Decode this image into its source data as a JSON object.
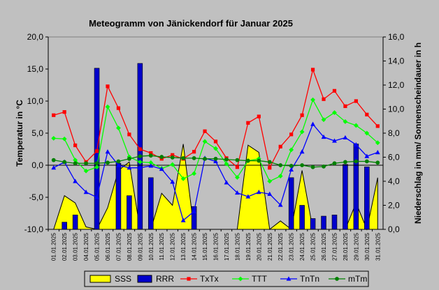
{
  "chart_data": {
    "type": "combo",
    "title": "Meteogramm von Jänickendorf für Januar 2025",
    "ylabel_left": "Temperatur in °C",
    "ylabel_right": "Niederschlag in mm/ Sonnenscheindauer in h",
    "ylim_left": [
      -10,
      20
    ],
    "ylim_right": [
      0,
      16
    ],
    "yticks_left": [
      "-10,0",
      "-5,0",
      "0,0",
      "5,0",
      "10,0",
      "15,0",
      "20,0"
    ],
    "yticks_right": [
      "0,0",
      "2,0",
      "4,0",
      "6,0",
      "8,0",
      "10,0",
      "12,0",
      "14,0",
      "16,0"
    ],
    "categories": [
      "01.01.2025",
      "02.01.2025",
      "03.01.2025",
      "04.01.2025",
      "05.01.2025",
      "06.01.2025",
      "07.01.2025",
      "08.01.2025",
      "09.01.2025",
      "10.01.2025",
      "11.01.2025",
      "12.01.2025",
      "13.01.2025",
      "14.01.2025",
      "15.01.2025",
      "16.01.2025",
      "17.01.2025",
      "18.01.2025",
      "19.01.2025",
      "20.01.2025",
      "21.01.2025",
      "22.01.2025",
      "23.01.2025",
      "24.01.2025",
      "25.01.2025",
      "26.01.2025",
      "27.01.2025",
      "28.01.2025",
      "29.01.2025",
      "30.01.2025",
      "31.01.2025"
    ],
    "grid": false,
    "legend_position": "bottom",
    "series": [
      {
        "name": "SSS",
        "type": "area",
        "axis": "right",
        "color": "#ffff00",
        "values": [
          0.0,
          2.8,
          2.2,
          0.2,
          0.0,
          1.8,
          4.9,
          5.6,
          0.0,
          0.0,
          3.0,
          2.0,
          7.1,
          0.0,
          0.0,
          0.0,
          0.0,
          0.0,
          7.0,
          6.4,
          0.0,
          0.7,
          0.0,
          4.9,
          0.0,
          0.0,
          0.0,
          0.0,
          2.2,
          0.0,
          4.3
        ]
      },
      {
        "name": "RRR",
        "type": "bar",
        "axis": "right",
        "color": "#0000cc",
        "values": [
          0.0,
          0.6,
          1.2,
          0.0,
          13.4,
          0.0,
          5.5,
          2.8,
          13.8,
          4.3,
          0.0,
          0.0,
          0.0,
          1.9,
          0.0,
          0.0,
          0.0,
          0.0,
          0.0,
          0.0,
          0.0,
          0.0,
          4.3,
          2.0,
          0.9,
          1.1,
          1.2,
          5.4,
          7.1,
          5.2,
          0.0
        ]
      },
      {
        "name": "TxTx",
        "type": "line",
        "axis": "left",
        "color": "#ff0000",
        "values": [
          7.8,
          8.3,
          3.1,
          0.5,
          2.2,
          12.3,
          8.9,
          4.8,
          2.5,
          1.9,
          1.0,
          1.6,
          1.0,
          2.1,
          5.3,
          3.7,
          1.1,
          -0.3,
          6.6,
          7.6,
          -0.4,
          2.9,
          4.8,
          7.8,
          14.9,
          10.3,
          11.6,
          9.2,
          10.0,
          7.9,
          6.1
        ]
      },
      {
        "name": "TTT",
        "type": "line",
        "axis": "left",
        "color": "#00ff00",
        "values": [
          4.2,
          4.1,
          0.8,
          -0.9,
          -0.3,
          9.1,
          5.8,
          1.3,
          0.5,
          0.4,
          -0.5,
          0.1,
          -2.1,
          -1.3,
          3.7,
          2.6,
          0.2,
          -1.9,
          0.7,
          1.0,
          -2.5,
          -1.7,
          2.4,
          5.2,
          10.2,
          7.1,
          8.2,
          6.8,
          6.2,
          5.0,
          3.5
        ]
      },
      {
        "name": "TnTn",
        "type": "line",
        "axis": "left",
        "color": "#0000ff",
        "values": [
          -0.4,
          0.5,
          -2.5,
          -4.2,
          -5.0,
          2.1,
          0.0,
          -0.4,
          -0.4,
          -0.1,
          -0.6,
          -2.6,
          -8.6,
          -7.2,
          1.1,
          0.6,
          -2.7,
          -4.3,
          -4.9,
          -4.2,
          -4.5,
          -6.2,
          -0.7,
          2.1,
          6.4,
          4.4,
          3.8,
          4.3,
          3.2,
          1.4,
          2.0
        ]
      },
      {
        "name": "mTm",
        "type": "line",
        "axis": "left",
        "color": "#008000",
        "values": [
          0.8,
          0.5,
          0.3,
          0.3,
          0.3,
          0.4,
          0.6,
          1.0,
          1.4,
          1.5,
          1.3,
          1.2,
          1.1,
          1.1,
          1.0,
          1.0,
          0.9,
          0.8,
          0.7,
          0.7,
          0.5,
          0.0,
          -0.1,
          0.0,
          -0.3,
          -0.2,
          0.3,
          0.5,
          0.6,
          0.6,
          0.4
        ]
      }
    ]
  }
}
